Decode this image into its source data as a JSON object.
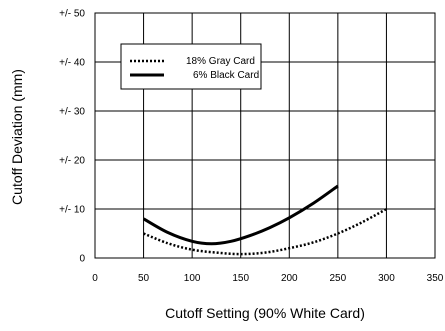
{
  "chart_data": {
    "type": "line",
    "xlabel": "Cutoff Setting (90% White Card)",
    "ylabel": "Cutoff Deviation (mm)",
    "xlim": [
      0,
      350
    ],
    "ylim": [
      0,
      50
    ],
    "x_ticks": [
      0,
      50,
      100,
      150,
      200,
      250,
      300,
      350
    ],
    "x_tick_labels": [
      "0",
      "50",
      "100",
      "150",
      "200",
      "250",
      "300",
      "350"
    ],
    "y_ticks": [
      0,
      10,
      20,
      30,
      40,
      50
    ],
    "y_tick_labels": [
      "0",
      "+/- 10",
      "+/- 20",
      "+/- 30",
      "+/- 40",
      "+/- 50"
    ],
    "grid": true,
    "legend_position": "top-left",
    "series": [
      {
        "name": "18% Gray Card",
        "style": "dotted",
        "color": "#000000",
        "points": [
          [
            50,
            5
          ],
          [
            75,
            3
          ],
          [
            100,
            1.7
          ],
          [
            125,
            1.1
          ],
          [
            150,
            0.8
          ],
          [
            175,
            1.1
          ],
          [
            200,
            2
          ],
          [
            225,
            3.2
          ],
          [
            250,
            5
          ],
          [
            275,
            7.3
          ],
          [
            300,
            10
          ]
        ]
      },
      {
        "name": "6% Black Card",
        "style": "solid",
        "color": "#000000",
        "points": [
          [
            50,
            8
          ],
          [
            75,
            5.2
          ],
          [
            100,
            3.4
          ],
          [
            120,
            2.9
          ],
          [
            140,
            3.4
          ],
          [
            160,
            4.6
          ],
          [
            180,
            6.2
          ],
          [
            200,
            8.2
          ],
          [
            225,
            11.2
          ],
          [
            250,
            14.7
          ]
        ]
      }
    ]
  }
}
